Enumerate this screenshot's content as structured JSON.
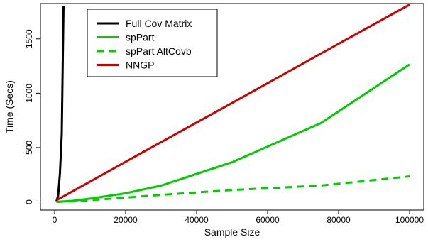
{
  "chart_data": {
    "type": "line",
    "title": "",
    "xlabel": "Sample Size",
    "ylabel": "Time (Secs)",
    "xlim": [
      -4000,
      104000
    ],
    "ylim": [
      -75,
      1825
    ],
    "xticks": [
      0,
      20000,
      40000,
      60000,
      80000,
      100000
    ],
    "xtick_labels": [
      "0",
      "20000",
      "40000",
      "60000",
      "80000",
      "100000"
    ],
    "yticks": [
      0,
      500,
      1000,
      1500
    ],
    "ytick_labels": [
      "0",
      "500",
      "1000",
      "1500"
    ],
    "grid": false,
    "legend_position": "top-left",
    "series": [
      {
        "name": "Full Cov Matrix",
        "color": "#000000",
        "style": "solid",
        "x": [
          500,
          1000,
          1500,
          2000,
          2500
        ],
        "y": [
          5,
          60,
          270,
          620,
          1800
        ]
      },
      {
        "name": "spPart",
        "color": "#00cc00",
        "style": "solid",
        "x": [
          500,
          5000,
          10000,
          20000,
          30000,
          50000,
          75000,
          100000
        ],
        "y": [
          0,
          10,
          30,
          80,
          150,
          365,
          725,
          1265
        ]
      },
      {
        "name": "spPart AltCovb",
        "color": "#00cc00",
        "style": "dashed",
        "x": [
          500,
          5000,
          10000,
          20000,
          30000,
          50000,
          75000,
          100000
        ],
        "y": [
          0,
          5,
          15,
          40,
          65,
          110,
          150,
          235
        ]
      },
      {
        "name": "NNGP",
        "color": "#cc0000",
        "style": "solid",
        "x": [
          500,
          25000,
          50000,
          75000,
          100000
        ],
        "y": [
          15,
          460,
          910,
          1365,
          1815
        ]
      }
    ]
  }
}
